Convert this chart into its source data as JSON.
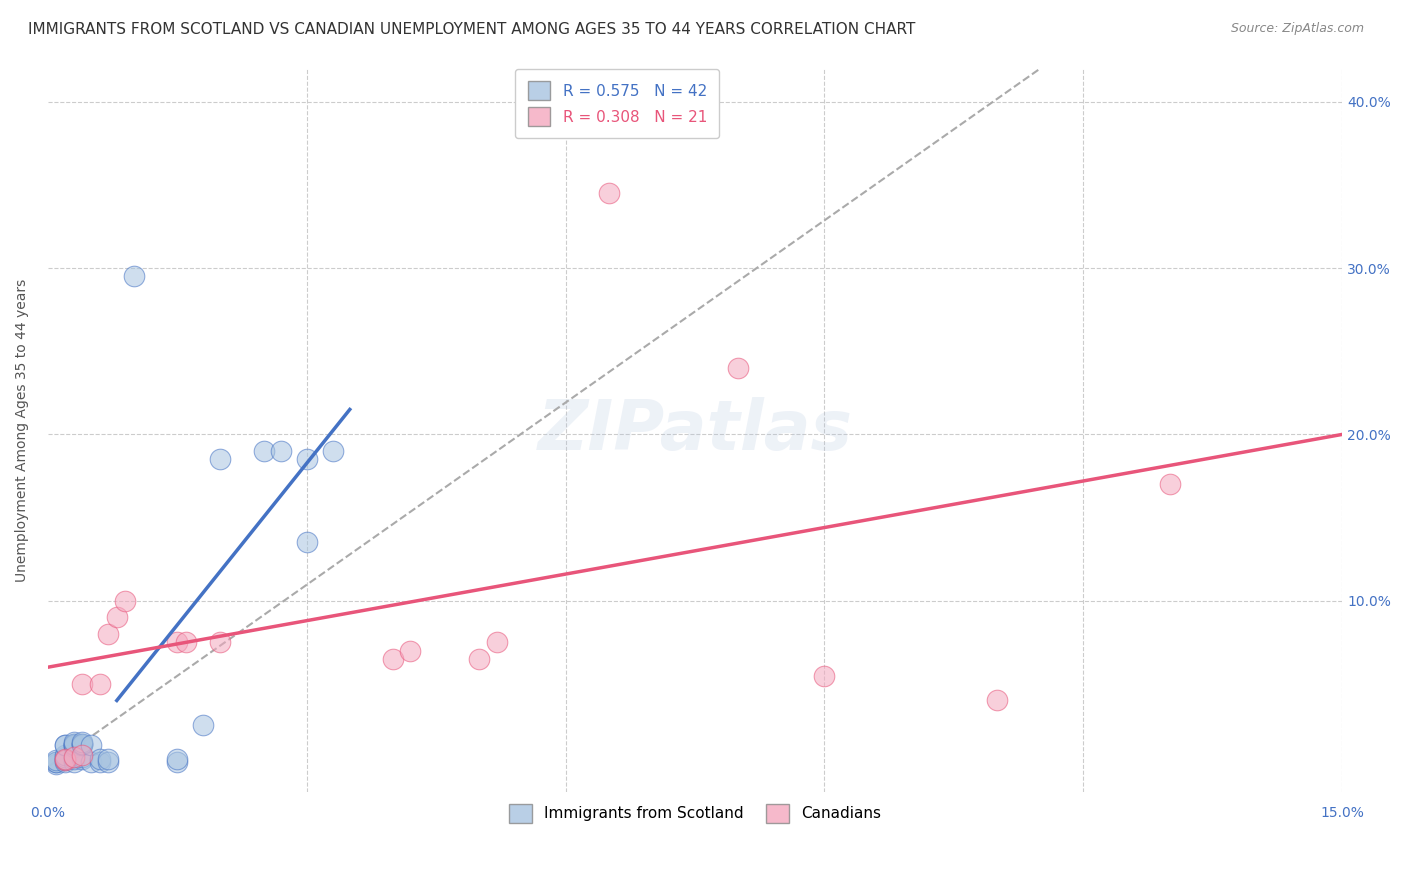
{
  "title": "IMMIGRANTS FROM SCOTLAND VS CANADIAN UNEMPLOYMENT AMONG AGES 35 TO 44 YEARS CORRELATION CHART",
  "source": "Source: ZipAtlas.com",
  "ylabel": "Unemployment Among Ages 35 to 44 years",
  "yticks": [
    0.0,
    0.1,
    0.2,
    0.3,
    0.4
  ],
  "ytick_labels": [
    "",
    "10.0%",
    "20.0%",
    "30.0%",
    "40.0%"
  ],
  "xlim": [
    0.0,
    0.15
  ],
  "ylim": [
    -0.015,
    0.42
  ],
  "blue_R": 0.575,
  "blue_N": 42,
  "pink_R": 0.308,
  "pink_N": 21,
  "blue_color": "#a8c4e0",
  "pink_color": "#f4a8bf",
  "blue_line_color": "#4472C4",
  "pink_line_color": "#E8557A",
  "blue_label": "Immigrants from Scotland",
  "pink_label": "Canadians",
  "blue_scatter": [
    [
      0.001,
      0.002
    ],
    [
      0.001,
      0.003
    ],
    [
      0.001,
      0.003
    ],
    [
      0.001,
      0.004
    ],
    [
      0.002,
      0.003
    ],
    [
      0.002,
      0.004
    ],
    [
      0.002,
      0.005
    ],
    [
      0.002,
      0.006
    ],
    [
      0.002,
      0.007
    ],
    [
      0.002,
      0.013
    ],
    [
      0.002,
      0.013
    ],
    [
      0.003,
      0.003
    ],
    [
      0.003,
      0.005
    ],
    [
      0.003,
      0.006
    ],
    [
      0.003,
      0.012
    ],
    [
      0.003,
      0.013
    ],
    [
      0.003,
      0.014
    ],
    [
      0.003,
      0.013
    ],
    [
      0.003,
      0.014
    ],
    [
      0.003,
      0.015
    ],
    [
      0.004,
      0.005
    ],
    [
      0.004,
      0.006
    ],
    [
      0.004,
      0.013
    ],
    [
      0.004,
      0.014
    ],
    [
      0.004,
      0.014
    ],
    [
      0.004,
      0.015
    ],
    [
      0.005,
      0.003
    ],
    [
      0.005,
      0.013
    ],
    [
      0.006,
      0.003
    ],
    [
      0.006,
      0.005
    ],
    [
      0.007,
      0.003
    ],
    [
      0.007,
      0.005
    ],
    [
      0.015,
      0.003
    ],
    [
      0.015,
      0.005
    ],
    [
      0.018,
      0.025
    ],
    [
      0.02,
      0.185
    ],
    [
      0.025,
      0.19
    ],
    [
      0.027,
      0.19
    ],
    [
      0.03,
      0.185
    ],
    [
      0.01,
      0.295
    ],
    [
      0.03,
      0.135
    ],
    [
      0.033,
      0.19
    ]
  ],
  "pink_scatter": [
    [
      0.002,
      0.004
    ],
    [
      0.002,
      0.005
    ],
    [
      0.003,
      0.006
    ],
    [
      0.004,
      0.007
    ],
    [
      0.004,
      0.05
    ],
    [
      0.006,
      0.05
    ],
    [
      0.007,
      0.08
    ],
    [
      0.008,
      0.09
    ],
    [
      0.009,
      0.1
    ],
    [
      0.015,
      0.075
    ],
    [
      0.016,
      0.075
    ],
    [
      0.02,
      0.075
    ],
    [
      0.04,
      0.065
    ],
    [
      0.042,
      0.07
    ],
    [
      0.05,
      0.065
    ],
    [
      0.052,
      0.075
    ],
    [
      0.065,
      0.345
    ],
    [
      0.08,
      0.24
    ],
    [
      0.09,
      0.055
    ],
    [
      0.11,
      0.04
    ],
    [
      0.13,
      0.17
    ]
  ],
  "blue_line": [
    [
      0.008,
      0.04
    ],
    [
      0.035,
      0.215
    ]
  ],
  "pink_line": [
    [
      0.0,
      0.06
    ],
    [
      0.15,
      0.2
    ]
  ],
  "ref_line": [
    [
      0.0,
      0.0
    ],
    [
      0.115,
      0.42
    ]
  ],
  "background_color": "#FFFFFF",
  "grid_color": "#CCCCCC",
  "title_fontsize": 11,
  "axis_label_fontsize": 10,
  "tick_fontsize": 10,
  "legend_fontsize": 11
}
